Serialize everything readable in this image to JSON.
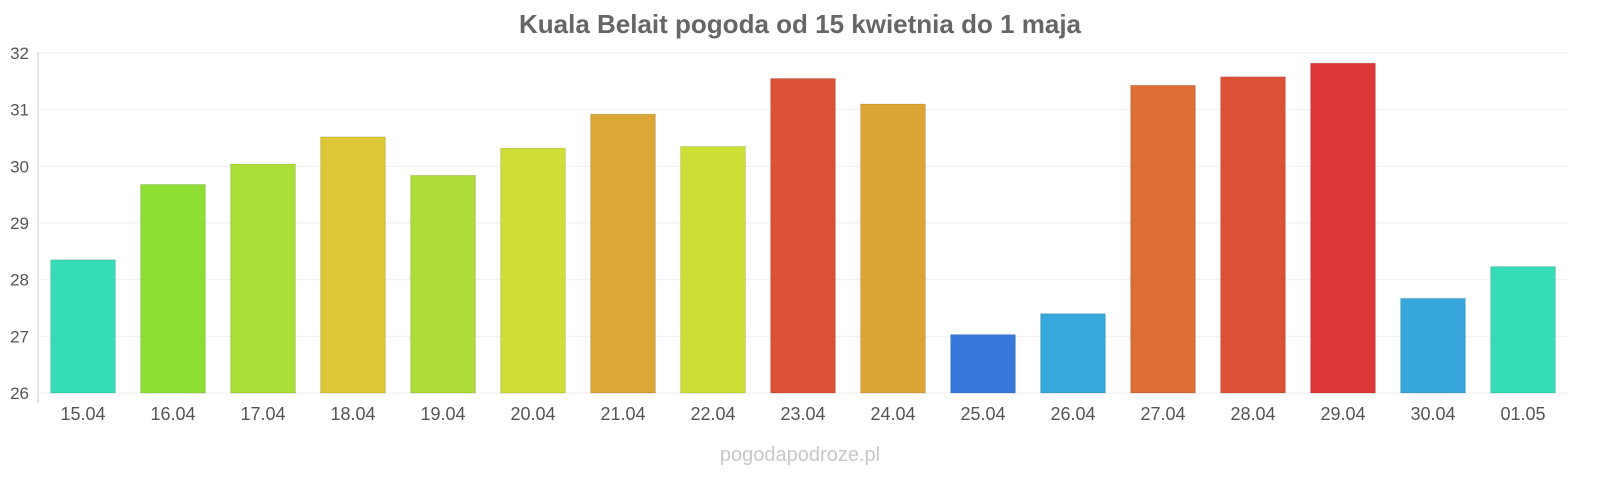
{
  "chart_data": {
    "type": "bar",
    "title": "Kuala Belait pogoda od 15 kwietnia do 1 maja",
    "xlabel": "",
    "ylabel": "",
    "ylim": [
      26,
      32
    ],
    "yticks": [
      "26",
      "27",
      "28",
      "29",
      "30",
      "31",
      "32"
    ],
    "grid": true,
    "legend": "none",
    "categories": [
      "15.04",
      "16.04",
      "17.04",
      "18.04",
      "19.04",
      "20.04",
      "21.04",
      "22.04",
      "23.04",
      "24.04",
      "25.04",
      "26.04",
      "27.04",
      "28.04",
      "29.04",
      "30.04",
      "01.05"
    ],
    "values": [
      28.35,
      29.68,
      30.04,
      30.52,
      29.84,
      30.32,
      30.92,
      30.35,
      31.55,
      31.1,
      27.03,
      27.4,
      31.43,
      31.58,
      31.82,
      27.67,
      28.23
    ],
    "colors": [
      "#36dcb8",
      "#8ede36",
      "#a8de36",
      "#dcc836",
      "#addd36",
      "#cede36",
      "#dca736",
      "#cddf36",
      "#dc5036",
      "#dca636",
      "#3678dc",
      "#36a8dc",
      "#dc6e36",
      "#dc5036",
      "#dc3636",
      "#36a6dc",
      "#36dcb8"
    ]
  },
  "watermark": "pogodapodroze.pl"
}
